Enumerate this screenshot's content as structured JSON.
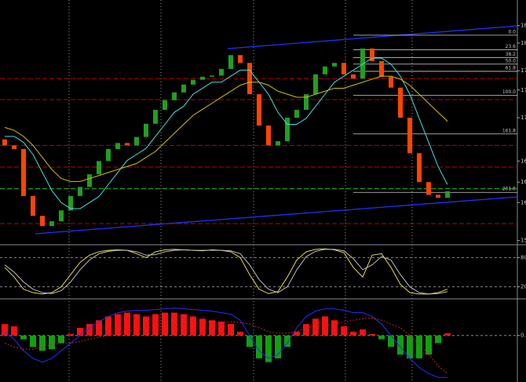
{
  "chart_data": [
    {
      "type": "candlestick",
      "open": [
        16.55,
        16.45,
        16.39,
        15.61,
        15.28,
        15.11,
        15.19,
        15.37,
        15.61,
        15.76,
        15.97,
        16.19,
        16.39,
        16.49,
        16.45,
        16.59,
        16.81,
        17.04,
        17.2,
        17.33,
        17.46,
        17.54,
        17.59,
        17.61,
        17.72,
        17.95,
        17.82,
        17.3,
        16.78,
        16.45,
        16.52,
        16.91,
        17.04,
        17.3,
        17.63,
        17.76,
        17.82,
        17.63,
        17.56,
        18.06,
        17.85,
        17.59,
        17.41,
        16.91,
        16.32,
        15.84,
        15.63,
        15.58
      ],
      "close": [
        16.45,
        16.39,
        15.61,
        15.28,
        15.11,
        15.19,
        15.37,
        15.61,
        15.76,
        15.97,
        16.19,
        16.39,
        16.49,
        16.45,
        16.59,
        16.81,
        17.04,
        17.2,
        17.33,
        17.46,
        17.54,
        17.59,
        17.61,
        17.72,
        17.95,
        17.82,
        17.3,
        16.78,
        16.45,
        16.52,
        16.91,
        17.04,
        17.3,
        17.63,
        17.76,
        17.82,
        17.63,
        17.56,
        18.06,
        17.85,
        17.59,
        17.41,
        16.91,
        16.32,
        15.84,
        15.63,
        15.58,
        15.69
      ],
      "up_color": "#1fa01f",
      "down_color": "#ff4500",
      "ylim": [
        14.8,
        18.8
      ],
      "yticks": [
        {
          "value": 18.44,
          "label": "18"
        },
        {
          "value": 18.15,
          "label": "18"
        },
        {
          "value": 17.69,
          "label": "17"
        },
        {
          "value": 17.37,
          "label": "17"
        },
        {
          "value": 16.91,
          "label": "17"
        },
        {
          "value": 16.19,
          "label": "16"
        },
        {
          "value": 15.84,
          "label": "16"
        },
        {
          "value": 15.5,
          "label": "16"
        },
        {
          "value": 14.87,
          "label": "15"
        }
      ],
      "lines": [
        {
          "color": "#40e0e0",
          "values": [
            16.6,
            16.6,
            16.5,
            16.3,
            16.0,
            15.7,
            15.5,
            15.4,
            15.4,
            15.5,
            15.6,
            15.8,
            16.0,
            16.2,
            16.3,
            16.4,
            16.6,
            16.8,
            17.0,
            17.1,
            17.3,
            17.4,
            17.5,
            17.5,
            17.6,
            17.7,
            17.7,
            17.5,
            17.3,
            17.0,
            16.8,
            16.8,
            16.9,
            17.1,
            17.3,
            17.5,
            17.6,
            17.7,
            17.8,
            17.9,
            17.9,
            17.8,
            17.6,
            17.3,
            16.9,
            16.5,
            16.1,
            15.8
          ]
        },
        {
          "color": "#d4c000",
          "values": [
            16.75,
            16.7,
            16.6,
            16.45,
            16.25,
            16.05,
            15.9,
            15.85,
            15.85,
            15.9,
            15.95,
            16.0,
            16.05,
            16.1,
            16.15,
            16.25,
            16.35,
            16.5,
            16.65,
            16.8,
            16.95,
            17.05,
            17.15,
            17.25,
            17.35,
            17.45,
            17.5,
            17.5,
            17.45,
            17.35,
            17.3,
            17.25,
            17.25,
            17.3,
            17.35,
            17.4,
            17.4,
            17.45,
            17.5,
            17.55,
            17.6,
            17.6,
            17.55,
            17.45,
            17.3,
            17.15,
            17.0,
            16.85
          ]
        }
      ],
      "levels": [
        {
          "color": "#c00000",
          "value": 17.56
        },
        {
          "color": "#c00000",
          "value": 17.21
        },
        {
          "color": "#c00000",
          "value": 16.45
        },
        {
          "color": "#c00000",
          "value": 16.09
        },
        {
          "color": "#c00000",
          "value": 15.15
        },
        {
          "color": "#20c020",
          "value": 15.73
        }
      ],
      "fib_levels": [
        {
          "label": "0.0",
          "value": 18.28
        },
        {
          "label": "23.6",
          "value": 18.04
        },
        {
          "label": "38.2",
          "value": 17.91
        },
        {
          "label": "50.0",
          "value": 17.8
        },
        {
          "label": "61.8",
          "value": 17.68
        },
        {
          "label": "100.0",
          "value": 17.28
        },
        {
          "label": "161.8",
          "value": 16.64
        },
        {
          "label": "261.8",
          "value": 15.67
        }
      ]
    },
    {
      "type": "line",
      "ylim": [
        0,
        100
      ],
      "yticks": [
        80,
        20
      ],
      "lines": [
        {
          "color": "#e6d84a",
          "values": [
            60,
            40,
            15,
            8,
            5,
            8,
            20,
            45,
            70,
            85,
            92,
            95,
            96,
            95,
            88,
            80,
            92,
            96,
            97,
            96,
            95,
            94,
            96,
            95,
            92,
            80,
            45,
            15,
            6,
            10,
            40,
            75,
            92,
            97,
            98,
            96,
            90,
            60,
            40,
            85,
            88,
            60,
            25,
            8,
            5,
            5,
            8,
            15
          ]
        },
        {
          "color": "#bdbdbd",
          "values": [
            65,
            50,
            30,
            15,
            8,
            6,
            12,
            30,
            55,
            75,
            88,
            93,
            95,
            95,
            92,
            85,
            86,
            92,
            95,
            96,
            95,
            95,
            95,
            95,
            94,
            88,
            65,
            35,
            15,
            8,
            20,
            55,
            82,
            93,
            97,
            97,
            94,
            78,
            55,
            65,
            82,
            75,
            45,
            20,
            8,
            5,
            6,
            10
          ]
        }
      ]
    },
    {
      "type": "bar",
      "values": [
        0.15,
        0.12,
        -0.05,
        -0.15,
        -0.2,
        -0.18,
        -0.1,
        0.02,
        0.1,
        0.15,
        0.2,
        0.25,
        0.28,
        0.3,
        0.28,
        0.25,
        0.28,
        0.3,
        0.3,
        0.28,
        0.25,
        0.22,
        0.2,
        0.18,
        0.15,
        0.05,
        -0.15,
        -0.3,
        -0.35,
        -0.3,
        -0.15,
        0.05,
        0.15,
        0.22,
        0.25,
        0.2,
        0.12,
        0.05,
        0.08,
        0.02,
        -0.05,
        -0.15,
        -0.25,
        -0.3,
        -0.3,
        -0.25,
        -0.1,
        0.03
      ],
      "up_color": "#ff1010",
      "down_color": "#10a010",
      "ylim": [
        -0.6,
        0.45
      ],
      "yticks": [
        {
          "value": 0,
          "label": "0.0"
        }
      ],
      "lines": [
        {
          "color": "#2030ff",
          "values": [
            0.05,
            -0.05,
            -0.2,
            -0.3,
            -0.35,
            -0.3,
            -0.2,
            -0.1,
            0.0,
            0.1,
            0.18,
            0.25,
            0.3,
            0.32,
            0.33,
            0.33,
            0.34,
            0.35,
            0.36,
            0.35,
            0.34,
            0.33,
            0.32,
            0.3,
            0.28,
            0.2,
            0.0,
            -0.2,
            -0.3,
            -0.25,
            -0.1,
            0.1,
            0.25,
            0.32,
            0.35,
            0.35,
            0.33,
            0.3,
            0.3,
            0.25,
            0.15,
            0.0,
            -0.15,
            -0.3,
            -0.42,
            -0.5,
            -0.55,
            -0.55
          ]
        },
        {
          "color": "#d02020",
          "values": [
            -0.1,
            -0.15,
            -0.18,
            -0.18,
            -0.15,
            -0.12,
            -0.1,
            -0.1,
            -0.08,
            -0.05,
            -0.02,
            0.0,
            0.03,
            0.05,
            0.08,
            0.1,
            0.12,
            0.13,
            0.14,
            0.15,
            0.16,
            0.17,
            0.18,
            0.18,
            0.18,
            0.17,
            0.15,
            0.1,
            0.05,
            0.03,
            0.03,
            0.05,
            0.1,
            0.12,
            0.13,
            0.15,
            0.18,
            0.2,
            0.22,
            0.23,
            0.2,
            0.15,
            0.1,
            0.0,
            -0.12,
            -0.25,
            -0.4,
            -0.5
          ]
        }
      ]
    }
  ]
}
